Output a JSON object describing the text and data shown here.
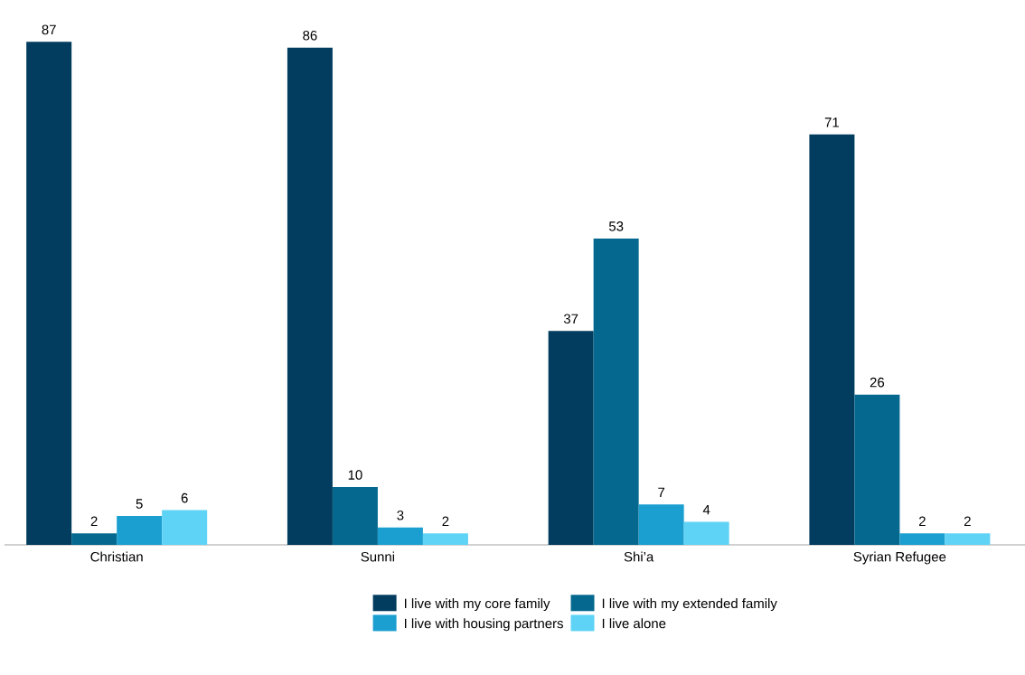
{
  "chart_data": {
    "type": "bar",
    "categories": [
      "Christian",
      "Sunni",
      "Shi’a",
      "Syrian Refugee"
    ],
    "series": [
      {
        "name": "I live with my core family",
        "color": "#023c5e",
        "values": [
          87,
          86,
          37,
          71
        ]
      },
      {
        "name": "I live with my extended family",
        "color": "#05688f",
        "values": [
          2,
          10,
          53,
          26
        ]
      },
      {
        "name": "I live with housing partners",
        "color": "#1a9fd0",
        "values": [
          5,
          3,
          7,
          2
        ]
      },
      {
        "name": "I live alone",
        "color": "#5fd3f6",
        "values": [
          6,
          2,
          4,
          2
        ]
      }
    ],
    "data_labels": true,
    "legend": "bottom"
  }
}
